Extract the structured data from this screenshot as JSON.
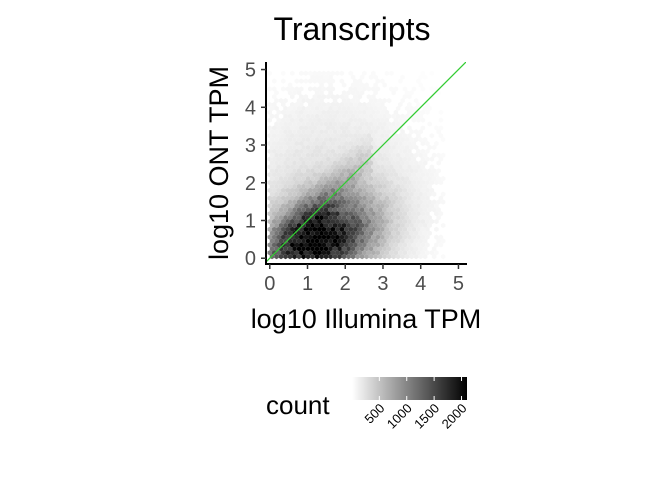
{
  "chart_data": {
    "type": "heatmap",
    "subtype": "hexbin",
    "title": "Transcripts",
    "xlabel": "log10 Illumina TPM",
    "ylabel": "log10 ONT TPM",
    "xlim": [
      -0.1,
      5.2
    ],
    "ylim": [
      -0.1,
      5.2
    ],
    "xticks": [
      "0",
      "1",
      "2",
      "3",
      "4",
      "5"
    ],
    "yticks": [
      "0",
      "1",
      "2",
      "3",
      "4",
      "5"
    ],
    "grid": false,
    "diagonal_line": {
      "slope": 1,
      "intercept": 0,
      "color": "#33cc33"
    },
    "fill_scale": {
      "low": "#ffffff",
      "high": "#000000",
      "min": 1,
      "max": 2100
    },
    "legend": {
      "title": "count",
      "position": "bottom",
      "breaks": [
        "500",
        "1000",
        "1500",
        "2000"
      ]
    },
    "density_model": {
      "peak": [
        1.3,
        0.45
      ],
      "main_spread": [
        0.85,
        0.7
      ],
      "main_peak_count": 2050,
      "halo_spread": [
        1.5,
        1.7
      ],
      "halo_count": 130,
      "diagonal_count": 350,
      "diagonal_spread": 0.35,
      "diagonal_range": [
        0,
        2.7
      ],
      "data_extent_x": [
        0,
        4.6
      ],
      "data_extent_y": [
        0,
        4.9
      ]
    }
  }
}
